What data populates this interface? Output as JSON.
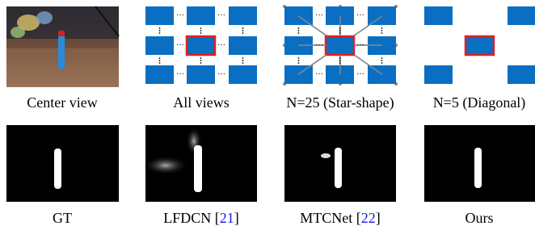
{
  "top_row": {
    "captions": [
      [
        "Center view"
      ],
      [
        "All views"
      ],
      [
        "N=25 (Star-shape)"
      ],
      [
        "N=5 (Diagonal)"
      ]
    ]
  },
  "bottom_row": {
    "captions": [
      [
        "GT"
      ],
      [
        "LFDCN [",
        "21",
        "]"
      ],
      [
        "MTCNet [",
        "22",
        "]"
      ],
      [
        "Ours"
      ]
    ]
  }
}
